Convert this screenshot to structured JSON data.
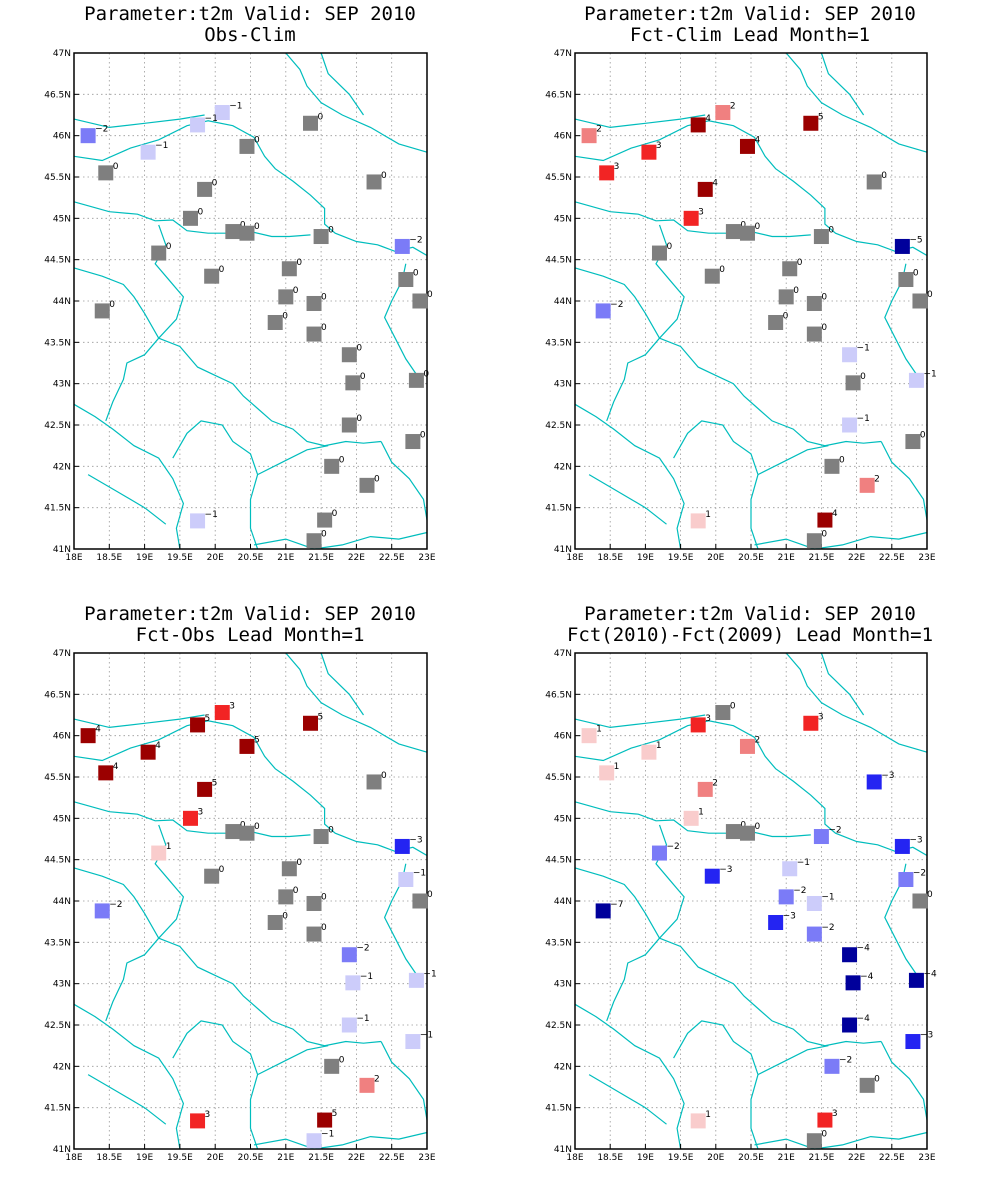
{
  "axes": {
    "lon_labels": [
      "18E",
      "18.5E",
      "19E",
      "19.5E",
      "20E",
      "20.5E",
      "21E",
      "21.5E",
      "22E",
      "22.5E",
      "23E"
    ],
    "lat_labels": [
      "41N",
      "41.5N",
      "42N",
      "42.5N",
      "43N",
      "43.5N",
      "44N",
      "44.5N",
      "45N",
      "45.5N",
      "46N",
      "46.5N",
      "47N"
    ],
    "xlim": [
      18,
      23
    ],
    "ylim": [
      41,
      47
    ],
    "grid": "dotted"
  },
  "colors": {
    "zero": "#7f7f7f",
    "pos1": "#f9cccc",
    "pos2": "#f08080",
    "pos3": "#f22424",
    "pos4plus": "#9b0000",
    "neg1": "#ccccfa",
    "neg2": "#7b7bf7",
    "neg3": "#2424f2",
    "neg4plus": "#00009b",
    "border": "#00bdbd"
  },
  "stations": [
    [
      18.2,
      46.0
    ],
    [
      19.05,
      45.8
    ],
    [
      20.1,
      46.28
    ],
    [
      19.75,
      46.13
    ],
    [
      18.45,
      45.55
    ],
    [
      19.85,
      45.35
    ],
    [
      20.45,
      45.87
    ],
    [
      21.35,
      46.15
    ],
    [
      22.25,
      45.44
    ],
    [
      19.65,
      45.0
    ],
    [
      20.25,
      44.84
    ],
    [
      20.45,
      44.82
    ],
    [
      21.5,
      44.78
    ],
    [
      22.65,
      44.66
    ],
    [
      19.2,
      44.58
    ],
    [
      19.95,
      44.3
    ],
    [
      21.05,
      44.39
    ],
    [
      22.7,
      44.26
    ],
    [
      21.0,
      44.05
    ],
    [
      21.4,
      43.97
    ],
    [
      22.9,
      44.0
    ],
    [
      18.4,
      43.88
    ],
    [
      20.85,
      43.74
    ],
    [
      21.4,
      43.6
    ],
    [
      21.9,
      43.35
    ],
    [
      21.95,
      43.01
    ],
    [
      22.85,
      43.04
    ],
    [
      21.9,
      42.5
    ],
    [
      22.8,
      42.3
    ],
    [
      21.65,
      42.0
    ],
    [
      22.15,
      41.77
    ],
    [
      21.55,
      41.35
    ],
    [
      19.75,
      41.34
    ],
    [
      21.4,
      41.1
    ]
  ],
  "chart_data": [
    {
      "type": "map",
      "parameter": "t2m",
      "valid": "SEP 2010",
      "title_line1": "Parameter:t2m Valid: SEP 2010",
      "title_line2": "Obs-Clim",
      "values": [
        -2,
        -1,
        -1,
        -1,
        0,
        0,
        0,
        0,
        0,
        0,
        0,
        0,
        0,
        -2,
        0,
        0,
        0,
        0,
        0,
        0,
        0,
        0,
        0,
        0,
        0,
        0,
        0,
        0,
        0,
        0,
        0,
        0,
        -1,
        0
      ]
    },
    {
      "type": "map",
      "parameter": "t2m",
      "valid": "SEP 2010",
      "title_line1": "Parameter:t2m Valid: SEP 2010",
      "title_line2": "Fct-Clim Lead Month=1",
      "values": [
        2,
        3,
        2,
        4,
        3,
        4,
        4,
        5,
        0,
        3,
        0,
        0,
        0,
        -5,
        0,
        0,
        0,
        0,
        0,
        0,
        0,
        -2,
        0,
        0,
        -1,
        0,
        -1,
        -1,
        0,
        0,
        2,
        4,
        1,
        0
      ]
    },
    {
      "type": "map",
      "parameter": "t2m",
      "valid": "SEP 2010",
      "title_line1": "Parameter:t2m Valid: SEP 2010",
      "title_line2": "Fct-Obs Lead Month=1",
      "values": [
        4,
        4,
        3,
        5,
        4,
        5,
        5,
        5,
        0,
        3,
        0,
        0,
        0,
        -3,
        1,
        0,
        0,
        -1,
        0,
        0,
        0,
        -2,
        0,
        0,
        -2,
        -1,
        -1,
        -1,
        -1,
        0,
        2,
        5,
        3,
        -1
      ]
    },
    {
      "type": "map",
      "parameter": "t2m",
      "valid": "SEP 2010",
      "title_line1": "Parameter:t2m Valid: SEP 2010",
      "title_line2": "Fct(2010)-Fct(2009) Lead Month=1",
      "values": [
        1,
        1,
        0,
        3,
        1,
        2,
        2,
        3,
        -3,
        1,
        0,
        0,
        -2,
        -3,
        -2,
        -3,
        -1,
        -2,
        -2,
        -1,
        0,
        -7,
        -3,
        -2,
        -4,
        -4,
        -4,
        -4,
        -3,
        -2,
        0,
        3,
        1,
        0
      ]
    }
  ]
}
